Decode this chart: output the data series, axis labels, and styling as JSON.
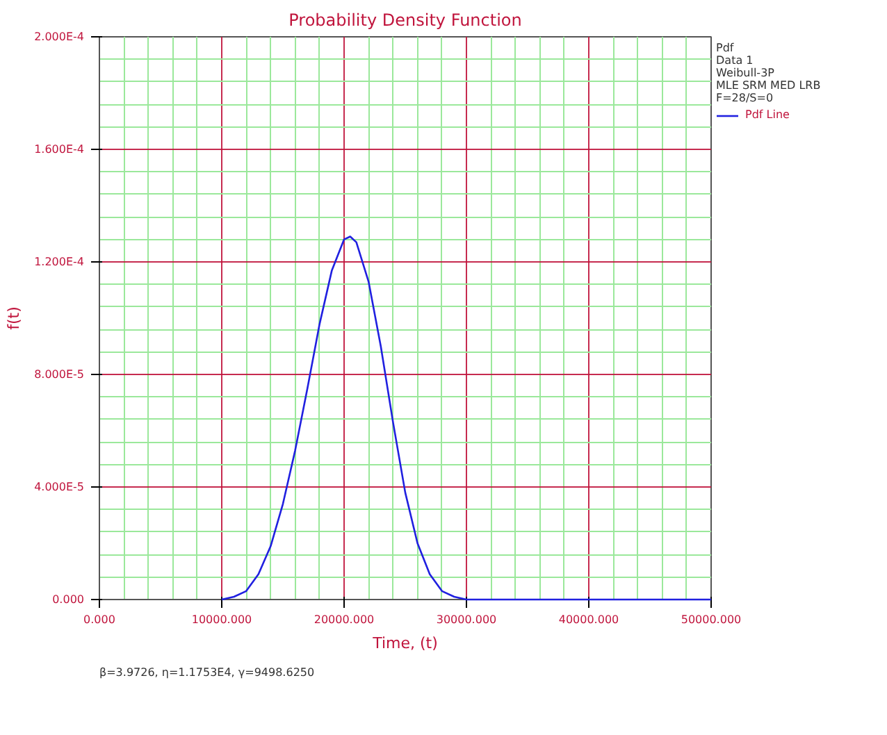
{
  "chart_data": {
    "type": "line",
    "title": "Probability Density Function",
    "xlabel": "Time, (t)",
    "ylabel": "f(t)",
    "legend_title": "Pdf",
    "annotations": [
      "Data 1",
      "Weibull-3P",
      "MLE SRM MED LRB",
      "F=28/S=0",
      "β=3.9726, η=1.1753E4, γ=9498.6250"
    ],
    "x": [
      10000,
      11000,
      12000,
      13000,
      14000,
      15000,
      16000,
      17000,
      18000,
      19000,
      20000,
      20500,
      21000,
      22000,
      23000,
      24000,
      25000,
      26000,
      27000,
      28000,
      29000,
      30000,
      40000,
      50000
    ],
    "series": [
      {
        "name": "Pdf Line",
        "color": "#2020e0",
        "values": [
          0,
          1e-06,
          3e-06,
          9e-06,
          1.9e-05,
          3.4e-05,
          5.3e-05,
          7.5e-05,
          9.8e-05,
          0.000117,
          0.000128,
          0.000129,
          0.000127,
          0.000113,
          9e-05,
          6.3e-05,
          3.8e-05,
          2e-05,
          9e-06,
          3e-06,
          1e-06,
          0,
          0,
          0
        ]
      }
    ],
    "xlim": [
      0,
      50000
    ],
    "ylim": [
      0,
      0.0002
    ],
    "xticks": [
      {
        "value": 0,
        "label": "0.000"
      },
      {
        "value": 10000,
        "label": "10000.000"
      },
      {
        "value": 20000,
        "label": "20000.000"
      },
      {
        "value": 30000,
        "label": "30000.000"
      },
      {
        "value": 40000,
        "label": "40000.000"
      },
      {
        "value": 50000,
        "label": "50000.000"
      },
      {
        "value": 2000,
        "label": null
      },
      {
        "value": 4000,
        "label": null
      },
      {
        "value": 6000,
        "label": null
      },
      {
        "value": 8000,
        "label": null
      },
      {
        "value": 12000,
        "label": null
      },
      {
        "value": 14000,
        "label": null
      },
      {
        "value": 16000,
        "label": null
      },
      {
        "value": 18000,
        "label": null
      },
      {
        "value": 22000,
        "label": null
      },
      {
        "value": 24000,
        "label": null
      },
      {
        "value": 26000,
        "label": null
      },
      {
        "value": 28000,
        "label": null
      },
      {
        "value": 32000,
        "label": null
      },
      {
        "value": 34000,
        "label": null
      },
      {
        "value": 36000,
        "label": null
      },
      {
        "value": 38000,
        "label": null
      },
      {
        "value": 42000,
        "label": null
      },
      {
        "value": 44000,
        "label": null
      },
      {
        "value": 46000,
        "label": null
      },
      {
        "value": 48000,
        "label": null
      }
    ],
    "yticks": [
      {
        "value": 0,
        "label": "0.000"
      },
      {
        "value": 4e-05,
        "label": "4.000E-5"
      },
      {
        "value": 8e-05,
        "label": "8.000E-5"
      },
      {
        "value": 0.00012,
        "label": "1.200E-4"
      },
      {
        "value": 0.00016,
        "label": "1.600E-4"
      },
      {
        "value": 0.0002,
        "label": "2.000E-4"
      },
      {
        "value": 8e-06,
        "label": null
      },
      {
        "value": 1.6e-05,
        "label": null
      },
      {
        "value": 2.4e-05,
        "label": null
      },
      {
        "value": 3.2e-05,
        "label": null
      },
      {
        "value": 4.8e-05,
        "label": null
      },
      {
        "value": 5.6e-05,
        "label": null
      },
      {
        "value": 6.4e-05,
        "label": null
      },
      {
        "value": 7.2e-05,
        "label": null
      },
      {
        "value": 8.8e-05,
        "label": null
      },
      {
        "value": 9.6e-05,
        "label": null
      },
      {
        "value": 0.000104,
        "label": null
      },
      {
        "value": 0.000112,
        "label": null
      },
      {
        "value": 0.000128,
        "label": null
      },
      {
        "value": 0.000136,
        "label": null
      },
      {
        "value": 0.000144,
        "label": null
      },
      {
        "value": 0.000152,
        "label": null
      },
      {
        "value": 0.000168,
        "label": null
      },
      {
        "value": 0.000176,
        "label": null
      },
      {
        "value": 0.000184,
        "label": null
      },
      {
        "value": 0.000192,
        "label": null
      }
    ],
    "grid": true,
    "legend": "right",
    "marker": "none",
    "line_style": "solid"
  }
}
